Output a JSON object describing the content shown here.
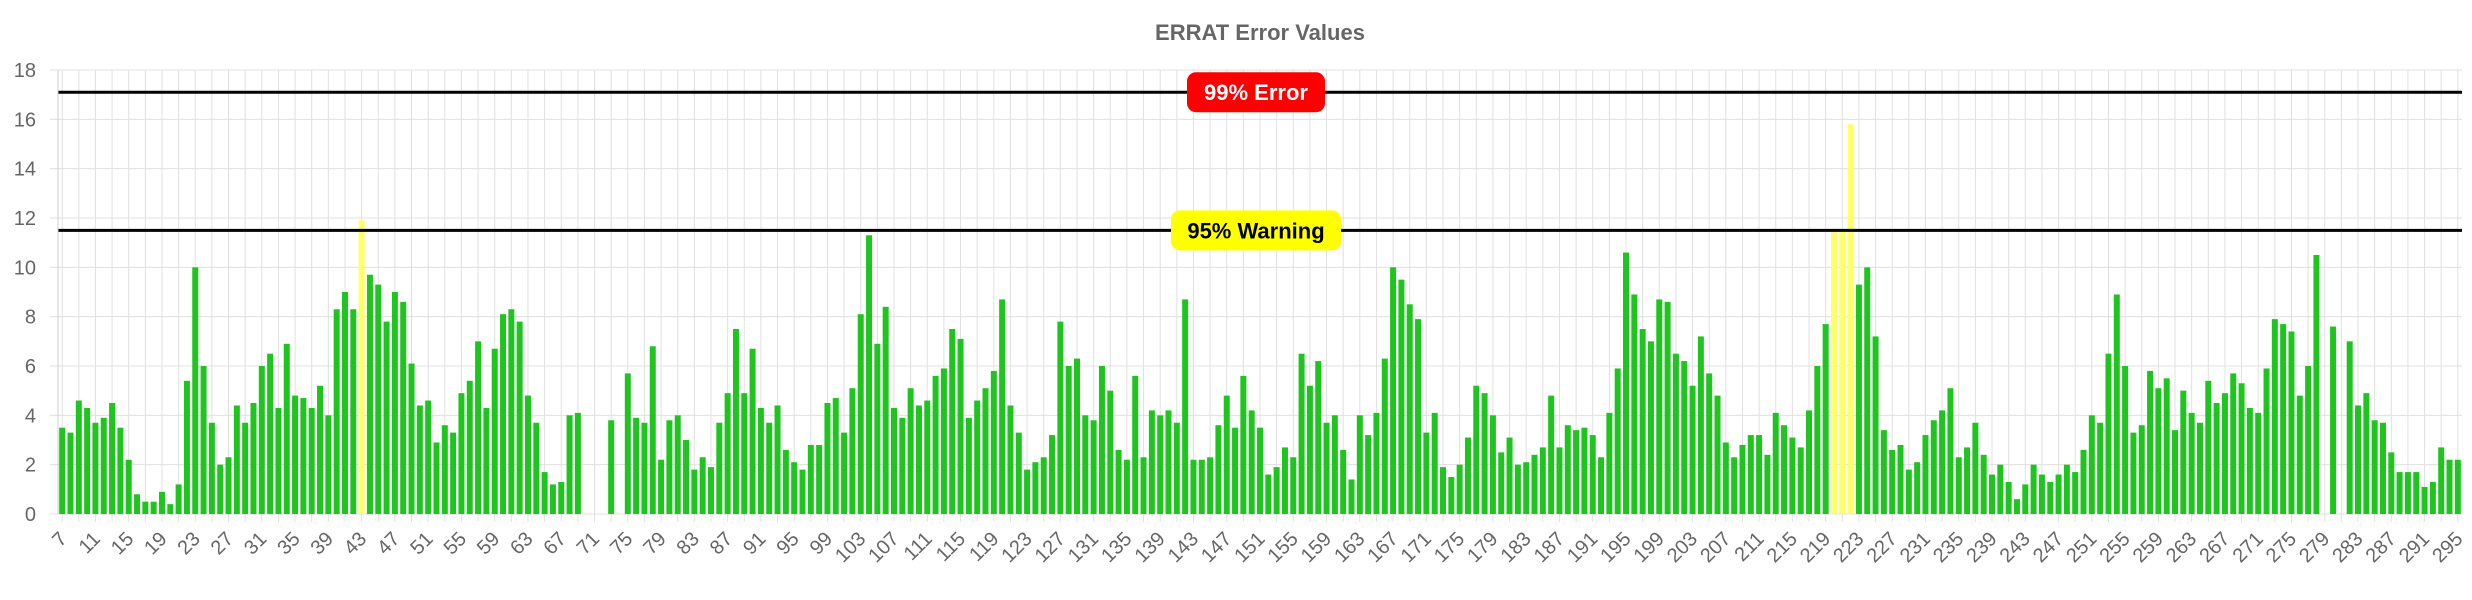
{
  "chart_data": {
    "type": "bar",
    "title": "ERRAT Error Values",
    "xlabel": "",
    "ylabel": "",
    "ylim": [
      0,
      18
    ],
    "y_ticks": [
      0,
      2,
      4,
      6,
      8,
      10,
      12,
      14,
      16,
      18
    ],
    "x_start": 7,
    "x_end": 297,
    "x_tick_every": 4,
    "grid": true,
    "colors": {
      "normal": "#1ec51e",
      "warning": "#ffff66",
      "error": "#ff0000",
      "line": "#000000",
      "grid": "#e0e0e0",
      "text": "#666666"
    },
    "thresholds": [
      {
        "label": "99% Error",
        "value": 17.1,
        "badge_color": "#ff0000",
        "text_color": "#ffffff"
      },
      {
        "label": "95% Warning",
        "value": 11.5,
        "badge_color": "#ffff00",
        "text_color": "#000000"
      }
    ],
    "values": [
      3.5,
      3.3,
      4.6,
      4.3,
      3.7,
      3.9,
      4.5,
      3.5,
      2.2,
      0.8,
      0.5,
      0.5,
      0.9,
      0.4,
      1.2,
      5.4,
      10.0,
      6.0,
      3.7,
      2.0,
      2.3,
      4.4,
      3.7,
      4.5,
      6.0,
      6.5,
      4.3,
      6.9,
      4.8,
      4.7,
      4.3,
      5.2,
      4.0,
      8.3,
      9.0,
      8.3,
      11.9,
      9.7,
      9.3,
      7.8,
      9.0,
      8.6,
      6.1,
      4.4,
      4.6,
      2.9,
      3.6,
      3.3,
      4.9,
      5.4,
      7.0,
      4.3,
      6.7,
      8.1,
      8.3,
      7.8,
      4.8,
      3.7,
      1.7,
      1.2,
      1.3,
      4.0,
      4.1,
      0,
      0,
      0,
      3.8,
      0,
      5.7,
      3.9,
      3.7,
      6.8,
      2.2,
      3.8,
      4.0,
      3.0,
      1.8,
      2.3,
      1.9,
      3.7,
      4.9,
      7.5,
      4.9,
      6.7,
      4.3,
      3.7,
      4.4,
      2.6,
      2.1,
      1.8,
      2.8,
      2.8,
      4.5,
      4.7,
      3.3,
      5.1,
      8.1,
      11.3,
      6.9,
      8.4,
      4.3,
      3.9,
      5.1,
      4.4,
      4.6,
      5.6,
      5.9,
      7.5,
      7.1,
      3.9,
      4.6,
      5.1,
      5.8,
      8.7,
      4.4,
      3.3,
      1.8,
      2.1,
      2.3,
      3.2,
      7.8,
      6.0,
      6.3,
      4.0,
      3.8,
      6.0,
      5.0,
      2.6,
      2.2,
      5.6,
      2.3,
      4.2,
      4.0,
      4.2,
      3.7,
      8.7,
      2.2,
      2.2,
      2.3,
      3.6,
      4.8,
      3.5,
      5.6,
      4.2,
      3.5,
      1.6,
      1.9,
      2.7,
      2.3,
      6.5,
      5.2,
      6.2,
      3.7,
      4.0,
      2.6,
      1.4,
      4.0,
      3.2,
      4.1,
      6.3,
      10.0,
      9.5,
      8.5,
      7.9,
      3.3,
      4.1,
      1.9,
      1.5,
      2.0,
      3.1,
      5.2,
      4.9,
      4.0,
      2.5,
      3.1,
      2.0,
      2.1,
      2.4,
      2.7,
      4.8,
      2.7,
      3.6,
      3.4,
      3.5,
      3.2,
      2.3,
      4.1,
      5.9,
      10.6,
      8.9,
      7.5,
      7.0,
      8.7,
      8.6,
      6.5,
      6.2,
      5.2,
      7.2,
      5.7,
      4.8,
      2.9,
      2.3,
      2.8,
      3.2,
      3.2,
      2.4,
      4.1,
      3.6,
      3.1,
      2.7,
      4.2,
      6.0,
      7.7,
      11.5,
      11.5,
      15.8,
      9.3,
      10.0,
      7.2,
      3.4,
      2.6,
      2.8,
      1.8,
      2.1,
      3.2,
      3.8,
      4.2,
      5.1,
      2.3,
      2.7,
      3.7,
      2.4,
      1.6,
      2.0,
      1.3,
      0.6,
      1.2,
      2.0,
      1.6,
      1.3,
      1.6,
      2.0,
      1.7,
      2.6,
      4.0,
      3.7,
      6.5,
      8.9,
      6.0,
      3.3,
      3.6,
      5.8,
      5.1,
      5.5,
      3.4,
      5.0,
      4.1,
      3.7,
      5.4,
      4.5,
      4.9,
      5.7,
      5.3,
      4.3,
      4.1,
      5.9,
      7.9,
      7.7,
      7.4,
      4.8,
      6.0,
      10.5,
      0,
      7.6,
      0,
      7.0,
      4.4,
      4.9,
      3.8,
      3.7,
      2.5,
      1.7,
      1.7,
      1.7,
      1.1,
      1.3,
      2.7,
      2.2,
      2.2
    ]
  }
}
